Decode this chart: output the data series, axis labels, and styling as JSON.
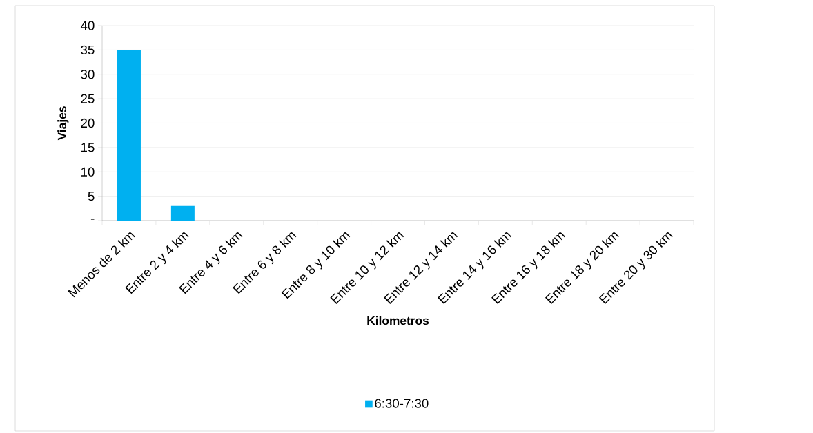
{
  "chart_data": {
    "type": "bar",
    "xlabel": "Kilometros",
    "ylabel": "Viajes",
    "categories": [
      "Menos de 2 km",
      "Entre 2 y 4 km",
      "Entre 4 y 6 km",
      "Entre 6 y 8 km",
      "Entre 8 y 10 km",
      "Entre 10 y 12 km",
      "Entre 12 y 14 km",
      "Entre 14 y 16 km",
      "Entre 16 y 18 km",
      "Entre 18 y 20 km",
      "Entre 20 y 30 km"
    ],
    "series": [
      {
        "name": "6:30-7:30",
        "color": "#00b0f0",
        "values": [
          35,
          3,
          0,
          0,
          0,
          0,
          0,
          0,
          0,
          0,
          0
        ]
      }
    ],
    "ylim": [
      0,
      40
    ],
    "yticks": [
      {
        "value": 0,
        "label": "-"
      },
      5,
      10,
      15,
      20,
      25,
      30,
      35,
      40
    ],
    "grid": "y",
    "legend": "bottom"
  }
}
